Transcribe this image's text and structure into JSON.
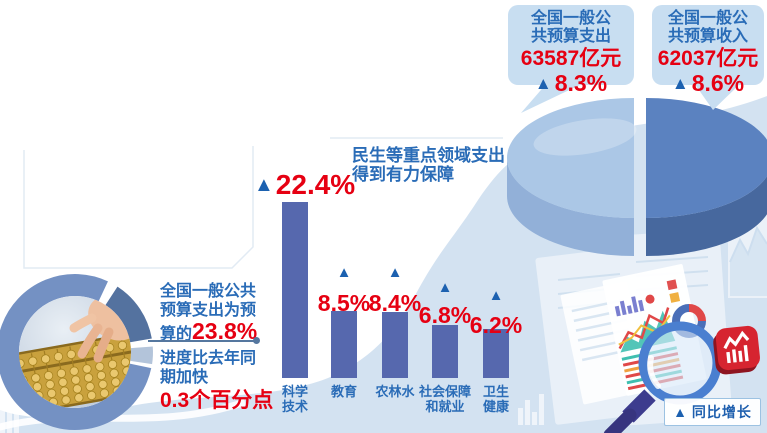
{
  "palette": {
    "bg_wave": "#d3e2f1",
    "bubble_bg": "#c8def1",
    "blue_text": "#2a6cb7",
    "red": "#e60012",
    "bar_fill": "#5668ae",
    "triangle_blue": "#1c61b0",
    "pie_left_top": "#abc7e6",
    "pie_left_side": "#92b0d8",
    "pie_right_top": "#5b82c0",
    "pie_right_side": "#47689e",
    "ring_main": "#7491c3",
    "ring_dark": "#54729f",
    "logo_red": "#d62430"
  },
  "callouts": [
    {
      "title": [
        "全国一般公",
        "共预算支出"
      ],
      "value": "63587亿元",
      "arrow": "▲",
      "percent": "8.3%"
    },
    {
      "title": [
        "全国一般公",
        "共预算收入"
      ],
      "value": "62037亿元",
      "arrow": "▲",
      "percent": "8.6%"
    }
  ],
  "bar_chart_caption": [
    "民生等重点领域支出",
    "得到有力保障"
  ],
  "chart_data": [
    {
      "type": "bar",
      "title": "民生等重点领域支出得到有力保障",
      "categories": [
        "科学技术",
        "教育",
        "农林水",
        "社会保障和就业",
        "卫生健康"
      ],
      "category_lines": [
        [
          "科学",
          "技术"
        ],
        [
          "教育"
        ],
        [
          "农林水"
        ],
        [
          "社会保障",
          "和就业"
        ],
        [
          "卫生",
          "健康"
        ]
      ],
      "values": [
        22.4,
        8.5,
        8.4,
        6.8,
        6.2
      ],
      "unit": "%",
      "value_marker": "▲",
      "ylim": [
        0,
        24
      ],
      "legend": "同比增长",
      "grid": false
    },
    {
      "type": "pie",
      "title": "全国一般公共预算收支",
      "slices": [
        {
          "label": "全国一般公共预算支出",
          "value": "63587亿元",
          "growth": "8.3%",
          "color": "#abc7e6"
        },
        {
          "label": "全国一般公共预算收入",
          "value": "62037亿元",
          "growth": "8.6%",
          "color": "#5b82c0"
        }
      ]
    }
  ],
  "left_note": {
    "para1_lines": [
      "全国一般公共",
      "预算支出为预",
      "算的"
    ],
    "para1_highlight": "23.8%",
    "para2_lines": [
      "进度比去年同",
      "期加快"
    ],
    "para2_highlight": "0.3个百分点"
  },
  "legend": {
    "arrow": "▲",
    "label": "同比增长"
  }
}
